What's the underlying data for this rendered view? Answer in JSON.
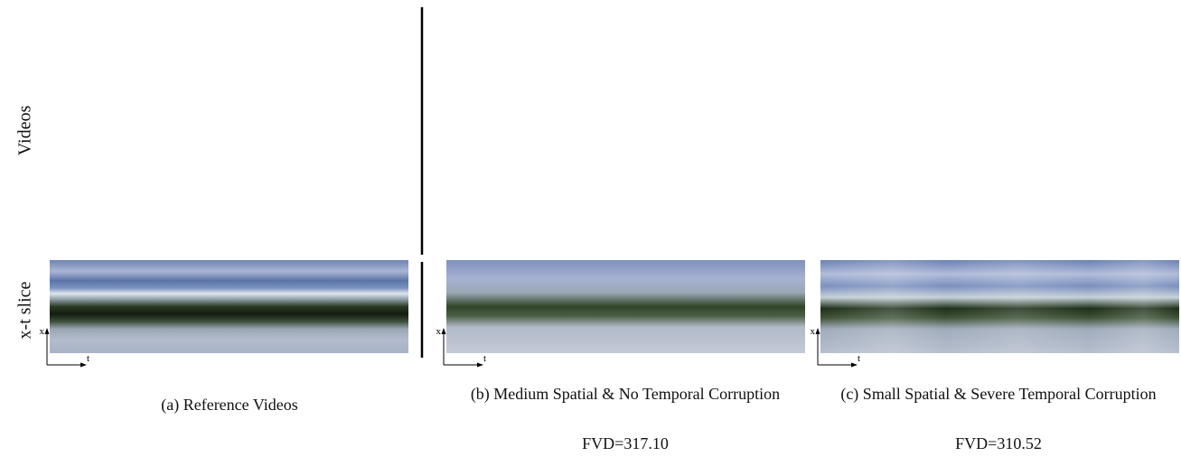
{
  "row_labels": [
    "Videos",
    "x-t slice"
  ],
  "panels": [
    {
      "caption": "(a) Reference Videos",
      "x_label": "x",
      "t_label": "t"
    },
    {
      "caption": "(b) Medium Spatial & No Temporal Corruption",
      "fvd": "FVD=317.10",
      "x_label": "x",
      "t_label": "t"
    },
    {
      "caption": "(c) Small Spatial & Severe Temporal Corruption",
      "fvd": "FVD=310.52",
      "x_label": "x",
      "t_label": "t"
    }
  ]
}
